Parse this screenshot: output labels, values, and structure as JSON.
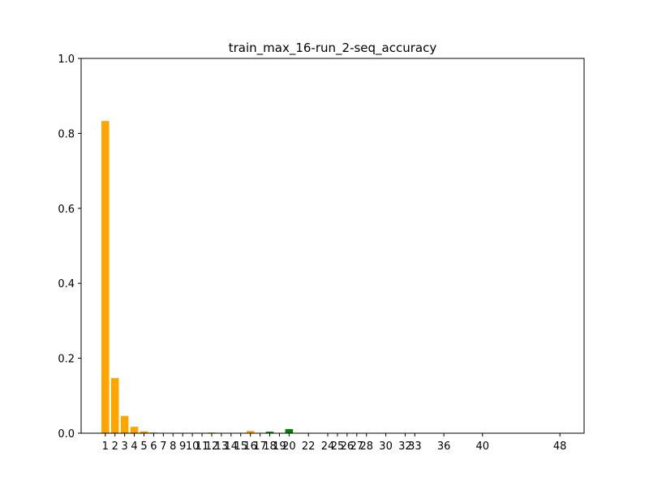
{
  "chart_data": {
    "type": "bar",
    "title": "train_max_16-run_2-seq_accuracy",
    "xlabel": "",
    "ylabel": "",
    "ylim": [
      0,
      1.0
    ],
    "xlim": [
      -1.5,
      50.5
    ],
    "yticks": [
      0.0,
      0.2,
      0.4,
      0.6,
      0.8,
      1.0
    ],
    "ytick_labels": [
      "0.0",
      "0.2",
      "0.4",
      "0.6",
      "0.8",
      "1.0"
    ],
    "xticks": [
      1,
      2,
      3,
      4,
      5,
      6,
      7,
      8,
      9,
      10,
      11,
      12,
      13,
      14,
      15,
      16,
      17,
      18,
      19,
      20,
      22,
      24,
      25,
      26,
      27,
      28,
      30,
      32,
      33,
      36,
      40,
      48
    ],
    "xtick_labels": [
      "1",
      "2",
      "3",
      "4",
      "5",
      "6",
      "7",
      "8",
      "9",
      "10",
      "11",
      "12",
      "13",
      "14",
      "15",
      "16",
      "17",
      "18",
      "19",
      "20",
      "22",
      "24",
      "25",
      "26",
      "27",
      "28",
      "30",
      "32",
      "33",
      "36",
      "40",
      "48"
    ],
    "grid": false,
    "bars": [
      {
        "x": 1,
        "value": 0.833,
        "color": "#ffa500"
      },
      {
        "x": 2,
        "value": 0.147,
        "color": "#ffa500"
      },
      {
        "x": 3,
        "value": 0.046,
        "color": "#ffa500"
      },
      {
        "x": 4,
        "value": 0.017,
        "color": "#ffa500"
      },
      {
        "x": 5,
        "value": 0.005,
        "color": "#ffa500"
      },
      {
        "x": 6,
        "value": 0.002,
        "color": "#ffa500"
      },
      {
        "x": 12,
        "value": 0.002,
        "color": "#ffa500"
      },
      {
        "x": 16,
        "value": 0.006,
        "color": "#ffa500"
      },
      {
        "x": 18,
        "value": 0.004,
        "color": "#008000"
      },
      {
        "x": 20,
        "value": 0.011,
        "color": "#008000"
      }
    ]
  }
}
